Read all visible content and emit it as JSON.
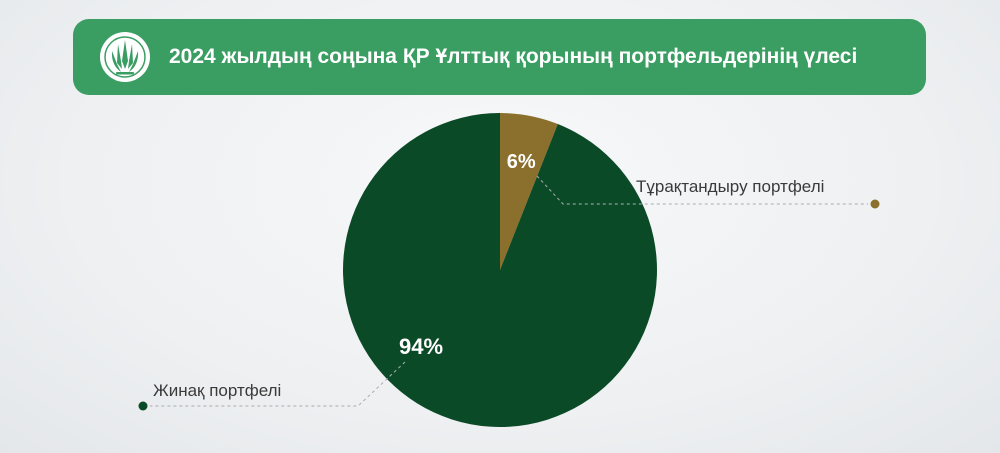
{
  "header": {
    "title": "2024 жылдың соңына ҚР Ұлттық қорының портфельдерінің үлесі",
    "logo_icon": "national-bank-emblem-icon"
  },
  "colors": {
    "header_bg": "#3a9e63",
    "savings": "#0b4a27",
    "stabilization": "#8b6f2c",
    "leader_line": "#a9adb1",
    "label_text": "#3a3a3a"
  },
  "chart_data": {
    "type": "pie",
    "title": "2024 жылдың соңына ҚР Ұлттық қорының портфельдерінің үлесі",
    "slices": [
      {
        "name": "Тұрақтандыру портфелі",
        "value": 6,
        "label": "6%",
        "color": "#8b6f2c"
      },
      {
        "name": "Жинақ портфелі",
        "value": 94,
        "label": "94%",
        "color": "#0b4a27"
      }
    ],
    "legend_placement": "callouts"
  }
}
